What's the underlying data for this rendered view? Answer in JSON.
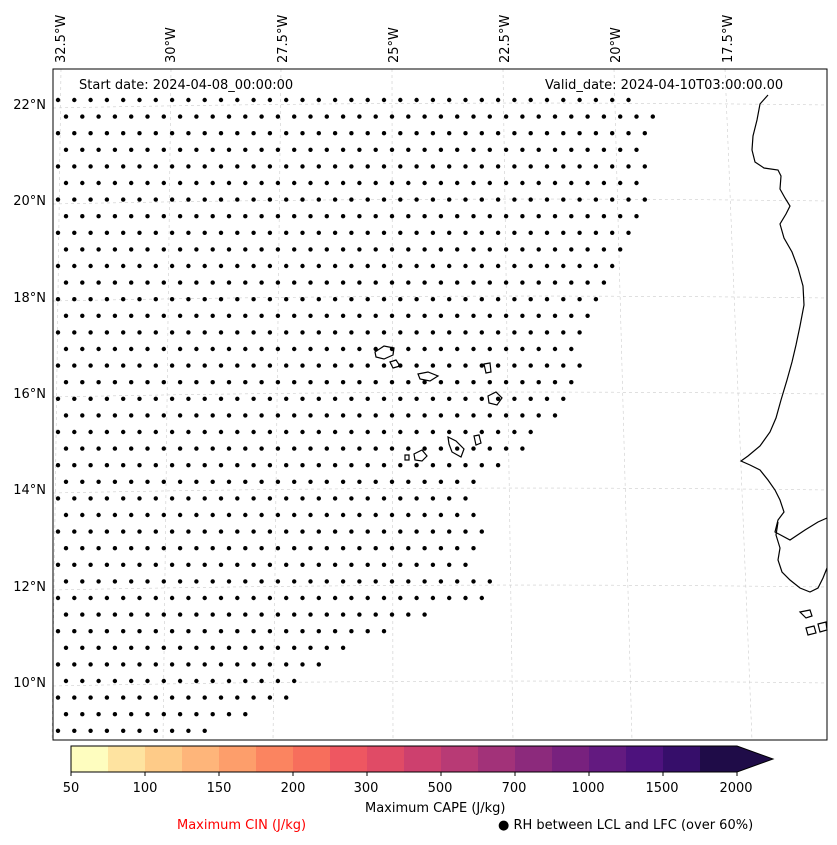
{
  "header": {
    "start_date": "Start date: 2024-04-08_00:00:00",
    "valid_date": "Valid_date: 2024-04-10T03:00:00.00"
  },
  "longitude_labels": [
    "32.5°W",
    "30°W",
    "27.5°W",
    "25°W",
    "22.5°W",
    "20°W",
    "17.5°W"
  ],
  "latitude_labels": [
    "22°N",
    "20°N",
    "18°N",
    "16°N",
    "14°N",
    "12°N",
    "10°N"
  ],
  "colorbar": {
    "label": "Maximum CAPE (J/kg)",
    "ticks": [
      "50",
      "100",
      "150",
      "200",
      "300",
      "500",
      "700",
      "1000",
      "1500",
      "2000"
    ],
    "colors": [
      "#fefdbf",
      "#fee3a0",
      "#fecb88",
      "#feb57a",
      "#fd9e6b",
      "#fb8460",
      "#f76e5c",
      "#ee5761",
      "#e04b66",
      "#cd406e",
      "#b83a75",
      "#a23279",
      "#8c2a7c",
      "#78217e",
      "#631a80",
      "#4d127d",
      "#360e6a",
      "#1f0c48"
    ]
  },
  "legend": {
    "cin_label": "Maximum CIN (J/kg)",
    "cin_color": "#ff0000",
    "rh_label": "RH between LCL and LFC (over 60%)",
    "rh_marker": "●"
  }
}
